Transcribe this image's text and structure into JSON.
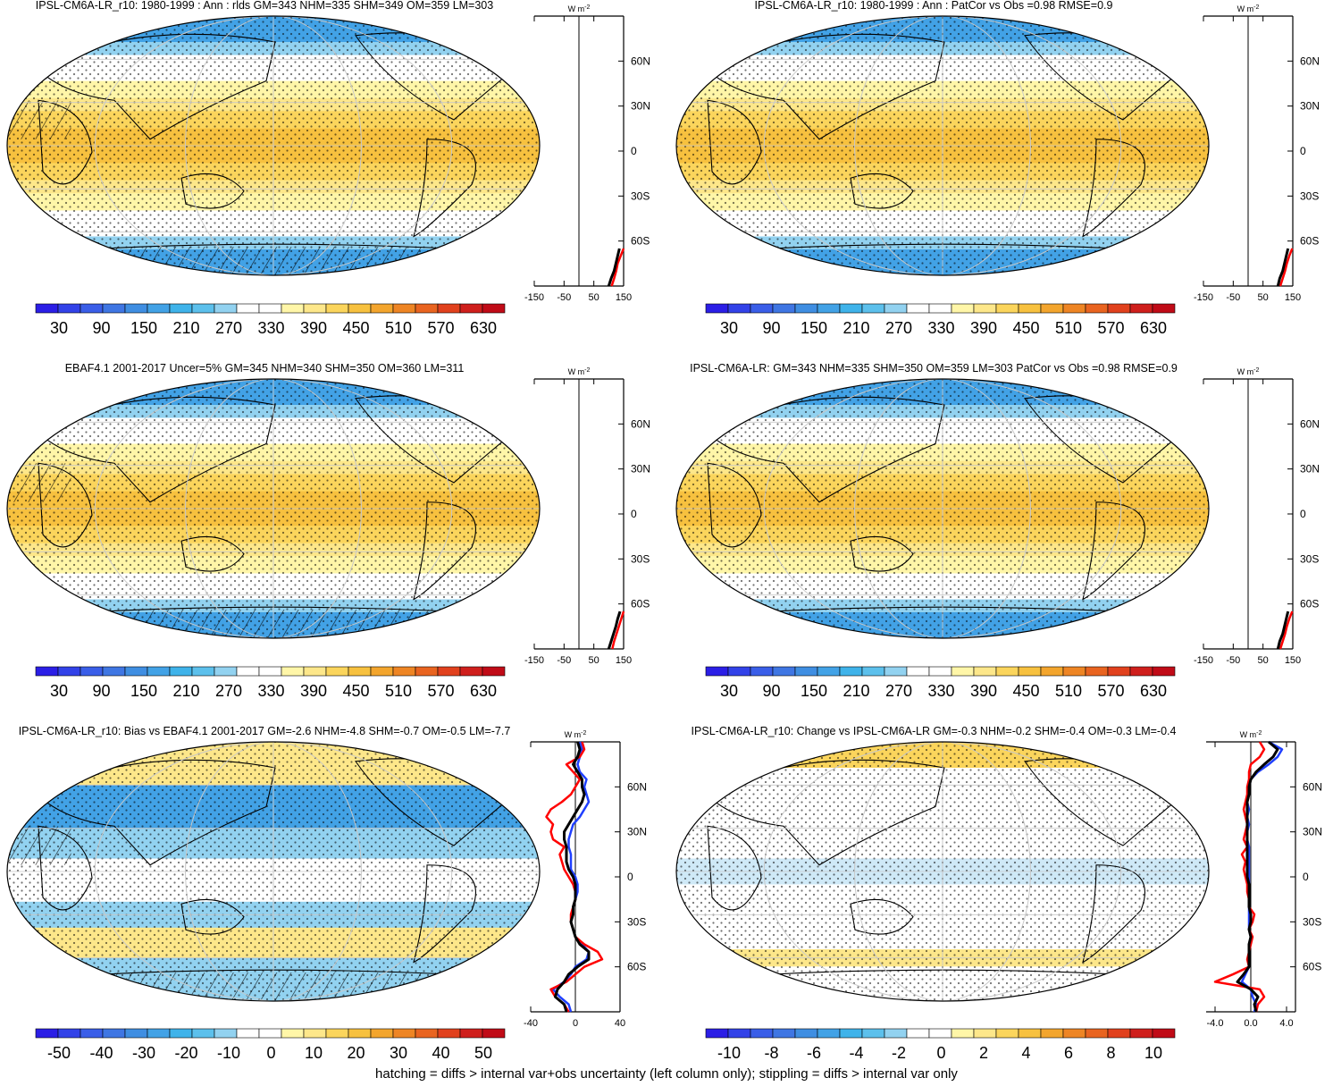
{
  "footer": "hatching = diffs > internal var+obs uncertainty (left column only); stippling = diffs > internal var only",
  "colors": {
    "blue_to_red": [
      "#2b1ee6",
      "#3242e8",
      "#3a5ee8",
      "#3f76e3",
      "#3f8ee2",
      "#42a2e6",
      "#3fb3ea",
      "#5cc0ec",
      "#92d2f0",
      "#ffffff",
      "#ffffff",
      "#fff6a8",
      "#fde78a",
      "#fbd55c",
      "#f7c13f",
      "#f3a52d",
      "#ee8524",
      "#e96420",
      "#e1411d",
      "#cf1f1c",
      "#c00b17"
    ],
    "land_outline": "#000000",
    "grid": "#c8c8c8",
    "profile_blue": "#1f3fff",
    "profile_red": "#ff0000",
    "profile_black": "#000000"
  },
  "chart_data": [
    {
      "type": "map",
      "title": "IPSL-CM6A-LR_r10: 1980-1999 : Ann : rlds GM=343 NHM=335 SHM=349 OM=359 LM=303",
      "field": "rlds",
      "colorbar_ticks": [
        "30",
        "90",
        "150",
        "210",
        "270",
        "330",
        "390",
        "450",
        "510",
        "570",
        "630"
      ],
      "colorbar_range": [
        0,
        660
      ],
      "hatching": true,
      "stippling": true,
      "profile": {
        "unit_label": "W m",
        "unit_exp": "-2",
        "xticks": [
          "-150",
          "-50",
          "50",
          "150"
        ],
        "xlim": [
          -150,
          150
        ],
        "yticks": [
          "60N",
          "30N",
          "0",
          "30S",
          "60S"
        ],
        "lat": [
          -90,
          -85,
          -80,
          -75,
          -70,
          -65
        ],
        "series": [
          {
            "color": "red",
            "values": [
              110,
              118,
              125,
              130,
              140,
              150
            ]
          },
          {
            "color": "black",
            "values": [
              100,
              108,
              118,
              124,
              130,
              136
            ]
          }
        ]
      }
    },
    {
      "type": "map",
      "title": "IPSL-CM6A-LR_r10: 1980-1999 : Ann : PatCor vs Obs =0.98 RMSE=0.9",
      "field": "rlds",
      "colorbar_ticks": [
        "30",
        "90",
        "150",
        "210",
        "270",
        "330",
        "390",
        "450",
        "510",
        "570",
        "630"
      ],
      "colorbar_range": [
        0,
        660
      ],
      "hatching": false,
      "stippling": true,
      "profile": {
        "unit_label": "W m",
        "unit_exp": "-2",
        "xticks": [
          "-150",
          "-50",
          "50",
          "150"
        ],
        "xlim": [
          -150,
          150
        ],
        "yticks": [
          "60N",
          "30N",
          "0",
          "30S",
          "60S"
        ],
        "lat": [
          -90,
          -85,
          -80,
          -75,
          -70,
          -65
        ],
        "series": [
          {
            "color": "red",
            "values": [
              108,
              116,
              124,
              130,
              138,
              148
            ]
          },
          {
            "color": "black",
            "values": [
              100,
              106,
              116,
              122,
              128,
              134
            ]
          }
        ]
      }
    },
    {
      "type": "map",
      "title": "EBAF4.1 2001-2017 Uncer=5% GM=345 NHM=340 SHM=350 OM=360 LM=311",
      "field": "rlds",
      "colorbar_ticks": [
        "30",
        "90",
        "150",
        "210",
        "270",
        "330",
        "390",
        "450",
        "510",
        "570",
        "630"
      ],
      "colorbar_range": [
        0,
        660
      ],
      "hatching": true,
      "stippling": true,
      "profile": {
        "unit_label": "W m",
        "unit_exp": "-2",
        "xticks": [
          "-150",
          "-50",
          "50",
          "150"
        ],
        "xlim": [
          -150,
          150
        ],
        "yticks": [
          "60N",
          "30N",
          "0",
          "30S",
          "60S"
        ],
        "lat": [
          -90,
          -85,
          -80,
          -75,
          -70,
          -65
        ],
        "series": [
          {
            "color": "red",
            "values": [
              112,
              118,
              126,
              134,
              142,
              150
            ]
          },
          {
            "color": "black",
            "values": [
              100,
              108,
              116,
              124,
              130,
              138
            ]
          }
        ]
      }
    },
    {
      "type": "map",
      "title": "IPSL-CM6A-LR: GM=343 NHM=335 SHM=350 OM=359 LM=303 PatCor vs Obs =0.98 RMSE=0.9",
      "field": "rlds",
      "colorbar_ticks": [
        "30",
        "90",
        "150",
        "210",
        "270",
        "330",
        "390",
        "450",
        "510",
        "570",
        "630"
      ],
      "colorbar_range": [
        0,
        660
      ],
      "hatching": false,
      "stippling": true,
      "profile": {
        "unit_label": "W m",
        "unit_exp": "-2",
        "xticks": [
          "-150",
          "-50",
          "50",
          "150"
        ],
        "xlim": [
          -150,
          150
        ],
        "yticks": [
          "60N",
          "30N",
          "0",
          "30S",
          "60S"
        ],
        "lat": [
          -90,
          -85,
          -80,
          -75,
          -70,
          -65
        ],
        "series": [
          {
            "color": "red",
            "values": [
              108,
              116,
              124,
              130,
              138,
              148
            ]
          },
          {
            "color": "black",
            "values": [
              100,
              106,
              116,
              122,
              128,
              134
            ]
          }
        ]
      }
    },
    {
      "type": "map",
      "title": "IPSL-CM6A-LR_r10: Bias vs EBAF4.1 2001-2017 GM=-2.6 NHM=-4.8 SHM=-0.7 OM=-0.5 LM=-7.7",
      "field": "bias",
      "colorbar_ticks": [
        "-50",
        "-40",
        "-30",
        "-20",
        "-10",
        "0",
        "10",
        "20",
        "30",
        "40",
        "50"
      ],
      "colorbar_range": [
        -55,
        55
      ],
      "hatching": true,
      "stippling": true,
      "profile": {
        "unit_label": "W m",
        "unit_exp": "-2",
        "xticks": [
          "-40",
          "0",
          "40"
        ],
        "xlim": [
          -40,
          40
        ],
        "yticks": [
          "60N",
          "30N",
          "0",
          "30S",
          "60S"
        ],
        "lat": [
          -90,
          -85,
          -80,
          -75,
          -70,
          -65,
          -60,
          -55,
          -50,
          -45,
          -40,
          -35,
          -30,
          -25,
          -20,
          -15,
          -10,
          -5,
          0,
          5,
          10,
          15,
          20,
          25,
          30,
          35,
          40,
          45,
          50,
          55,
          60,
          65,
          70,
          75,
          80,
          85,
          90
        ],
        "series": [
          {
            "color": "blue",
            "values": [
              -4,
              -6,
              -14,
              -20,
              -10,
              -4,
              0,
              10,
              12,
              6,
              0,
              -2,
              -4,
              -2,
              -2,
              0,
              2,
              2,
              0,
              -4,
              -4,
              -4,
              -6,
              -6,
              -4,
              -2,
              4,
              8,
              12,
              10,
              8,
              10,
              4,
              2,
              4,
              6,
              4
            ]
          },
          {
            "color": "red",
            "values": [
              -6,
              -10,
              -18,
              -22,
              -8,
              0,
              8,
              24,
              20,
              8,
              0,
              -2,
              -4,
              -4,
              -2,
              0,
              0,
              -2,
              -6,
              -10,
              -12,
              -14,
              -10,
              -20,
              -22,
              -20,
              -26,
              -22,
              -12,
              -4,
              0,
              4,
              -2,
              -8,
              4,
              8,
              6
            ]
          },
          {
            "color": "black",
            "values": [
              -8,
              -10,
              -18,
              -16,
              -10,
              -6,
              2,
              12,
              12,
              4,
              0,
              -2,
              -4,
              -2,
              -2,
              0,
              0,
              0,
              -2,
              -6,
              -8,
              -8,
              -8,
              -10,
              -10,
              -6,
              -2,
              2,
              6,
              8,
              6,
              6,
              2,
              -2,
              2,
              4,
              2
            ]
          }
        ]
      }
    },
    {
      "type": "map",
      "title": "IPSL-CM6A-LR_r10: Change vs IPSL-CM6A-LR GM=-0.3 NHM=-0.2 SHM=-0.4 OM=-0.3 LM=-0.4",
      "field": "change",
      "colorbar_ticks": [
        "-10",
        "-8",
        "-6",
        "-4",
        "-2",
        "0",
        "2",
        "4",
        "6",
        "8",
        "10"
      ],
      "colorbar_range": [
        -11,
        11
      ],
      "hatching": false,
      "stippling": true,
      "profile": {
        "unit_label": "W m",
        "unit_exp": "-2",
        "xticks": [
          "-4.0",
          "0.0",
          "4.0"
        ],
        "xlim": [
          -5,
          5
        ],
        "yticks": [
          "60N",
          "30N",
          "0",
          "30S",
          "60S"
        ],
        "lat": [
          -90,
          -85,
          -80,
          -75,
          -70,
          -65,
          -60,
          -55,
          -50,
          -45,
          -40,
          -35,
          -30,
          -25,
          -20,
          -15,
          -10,
          -5,
          0,
          5,
          10,
          15,
          20,
          25,
          30,
          35,
          40,
          45,
          50,
          55,
          60,
          65,
          70,
          75,
          80,
          85,
          90
        ],
        "series": [
          {
            "color": "blue",
            "values": [
              0.4,
              0.6,
              0.2,
              0.0,
              -1.0,
              -0.6,
              -0.2,
              -0.2,
              -0.2,
              -0.2,
              0.0,
              -0.2,
              -0.2,
              -0.2,
              -0.2,
              -0.2,
              -0.2,
              -0.2,
              -0.2,
              -0.2,
              -0.2,
              -0.2,
              -0.2,
              -0.4,
              -0.4,
              -0.2,
              -0.4,
              -0.2,
              -0.4,
              -0.2,
              -0.2,
              0.0,
              0.8,
              2.0,
              3.0,
              3.5,
              2.0
            ]
          },
          {
            "color": "red",
            "values": [
              0.6,
              0.8,
              1.5,
              1.0,
              -4.0,
              -2.0,
              -0.2,
              -0.4,
              -0.2,
              0.0,
              0.2,
              -0.2,
              0.2,
              0.4,
              -0.2,
              -0.2,
              -0.4,
              -0.4,
              -0.6,
              -0.8,
              -0.6,
              -1.0,
              -0.4,
              -0.8,
              -0.6,
              -0.4,
              -0.6,
              -0.8,
              -0.6,
              -0.4,
              -0.4,
              -0.2,
              -0.2,
              0.0,
              1.0,
              1.5,
              1.0
            ]
          },
          {
            "color": "black",
            "values": [
              0.6,
              0.4,
              0.8,
              0.0,
              -1.5,
              -0.8,
              -0.2,
              -0.2,
              -0.2,
              -0.2,
              0.0,
              -0.2,
              0.0,
              0.0,
              -0.2,
              -0.2,
              -0.2,
              -0.2,
              -0.4,
              -0.4,
              -0.4,
              -0.4,
              -0.4,
              -0.4,
              -0.4,
              -0.4,
              -0.4,
              -0.4,
              -0.4,
              -0.2,
              -0.2,
              0.0,
              0.6,
              1.5,
              2.5,
              3.0,
              2.0
            ]
          }
        ]
      }
    }
  ]
}
